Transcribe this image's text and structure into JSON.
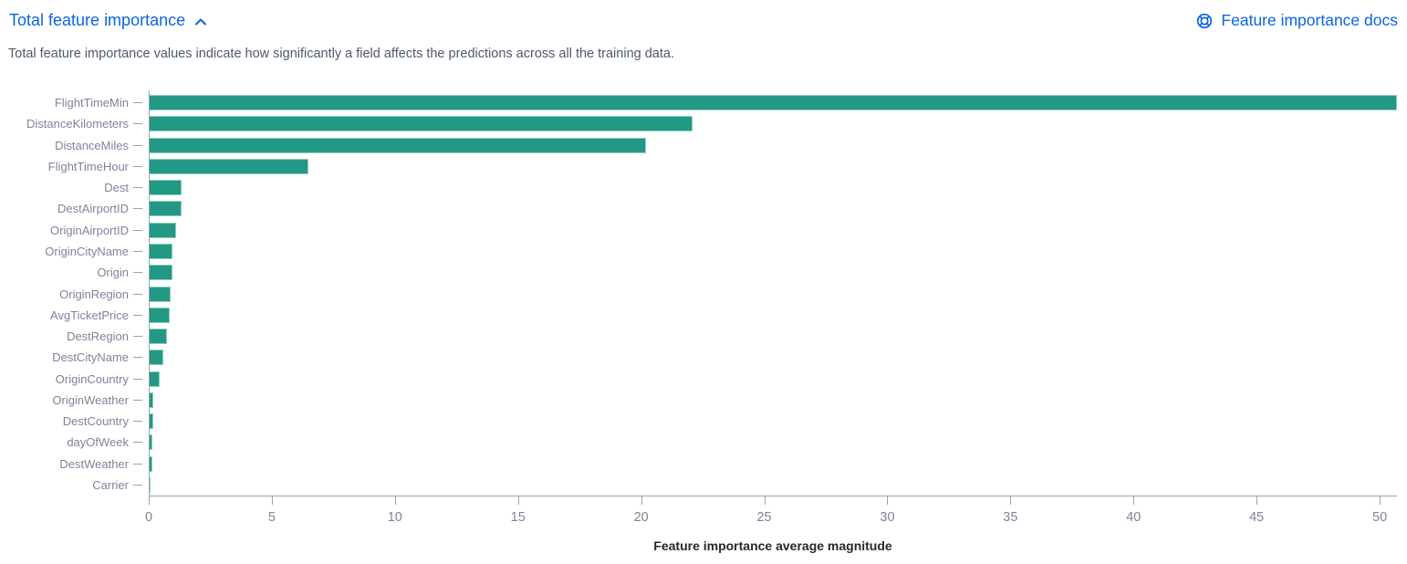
{
  "header": {
    "title": "Total feature importance",
    "docs_label": "Feature importance docs",
    "description": "Total feature importance values indicate how significantly a field affects the predictions across all the training data."
  },
  "icons": {
    "collapse": "chevron-up-icon",
    "docs": "lifebuoy-docs-icon"
  },
  "colors": {
    "link_blue": "#0b64dd",
    "bar_teal": "#239884",
    "bar_rim": "#8fcfc0",
    "axis_line": "#98a2b3",
    "axis_label": "#7d8598",
    "description_text": "#4f596b",
    "axis_title_text": "#26282e"
  },
  "chart_data": {
    "type": "bar",
    "orientation": "horizontal",
    "title": "",
    "xlabel": "Feature importance average magnitude",
    "ylabel": "",
    "categories": [
      "FlightTimeMin",
      "DistanceKilometers",
      "DistanceMiles",
      "FlightTimeHour",
      "Dest",
      "DestAirportID",
      "OriginAirportID",
      "OriginCityName",
      "Origin",
      "OriginRegion",
      "AvgTicketPrice",
      "DestRegion",
      "DestCityName",
      "OriginCountry",
      "OriginWeather",
      "DestCountry",
      "dayOfWeek",
      "DestWeather",
      "Carrier"
    ],
    "values": [
      50.7,
      22.1,
      20.2,
      6.5,
      1.35,
      1.32,
      1.1,
      0.98,
      0.95,
      0.9,
      0.85,
      0.74,
      0.6,
      0.46,
      0.2,
      0.18,
      0.16,
      0.15,
      0.07
    ],
    "xticks": [
      0,
      5,
      10,
      15,
      20,
      25,
      30,
      35,
      40,
      45,
      50
    ],
    "xlim": [
      0,
      50.7
    ],
    "grid": false,
    "legend": "none",
    "bar_color": "#239884"
  }
}
